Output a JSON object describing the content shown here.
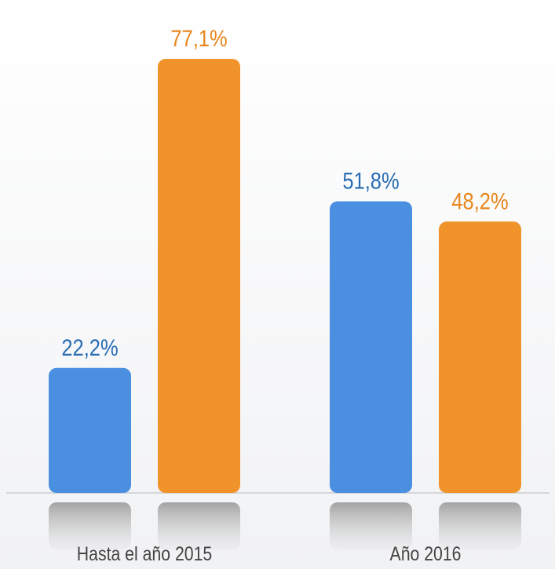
{
  "chart_data": {
    "type": "bar",
    "categories": [
      "Hasta el año 2015",
      "Año 2016"
    ],
    "series": [
      {
        "color": "#4a8fe0",
        "values": [
          22.2,
          51.8
        ],
        "value_labels": [
          "22,2%",
          "51,8%"
        ]
      },
      {
        "color": "#f0932b",
        "values": [
          77.1,
          48.2
        ],
        "value_labels": [
          "77,1%",
          "48,2%"
        ]
      }
    ]
  }
}
